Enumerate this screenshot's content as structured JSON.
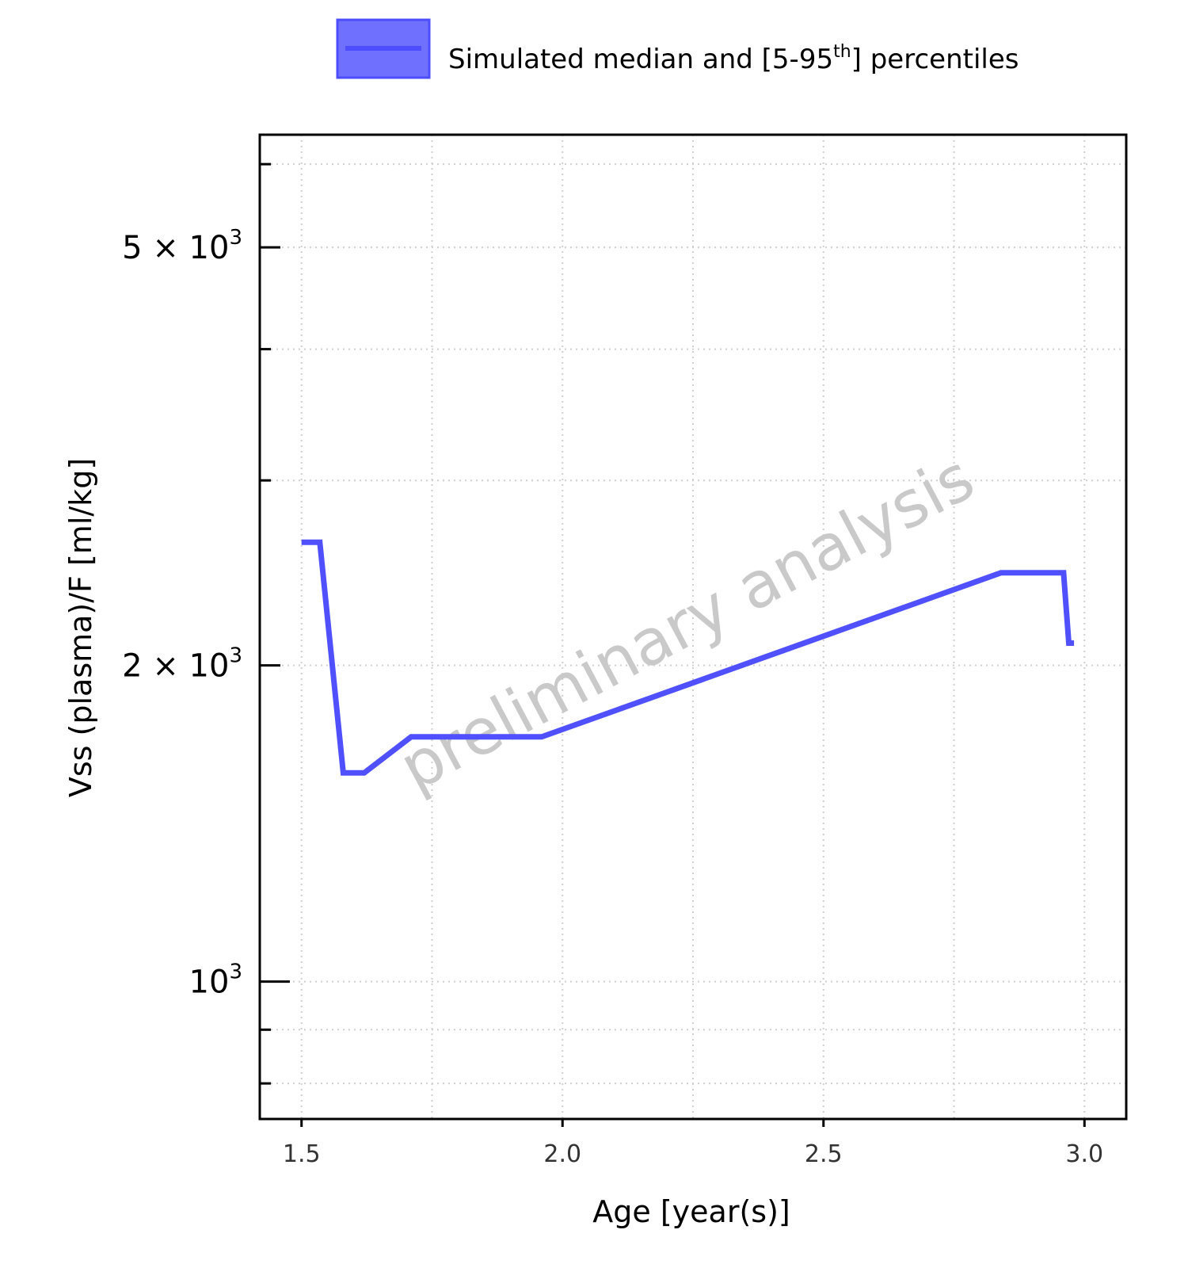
{
  "chart_data": {
    "type": "area",
    "y_scale": "log",
    "grid": true,
    "legend_placement": "top",
    "xlim": [
      1.42,
      3.08
    ],
    "ylim": [
      740,
      6400
    ],
    "xlabel": "Age [year(s)]",
    "ylabel": "Vss (plasma)/F [ml/kg]",
    "x_ticks": [
      {
        "value": 1.5,
        "label": "1.5"
      },
      {
        "value": 2.0,
        "label": "2.0"
      },
      {
        "value": 2.5,
        "label": "2.5"
      },
      {
        "value": 3.0,
        "label": "3.0"
      }
    ],
    "y_major_ticks": [
      {
        "value": 1000,
        "mantissa": "",
        "exponent": "3"
      },
      {
        "value": 2000,
        "mantissa": "2 × ",
        "exponent": "3"
      },
      {
        "value": 5000,
        "mantissa": "5 × ",
        "exponent": "3"
      }
    ],
    "y_minor_ticks": [
      800,
      900,
      3000,
      4000,
      6000
    ],
    "legend": {
      "text_main": "Simulated median and [5-95",
      "text_sup": "th",
      "text_end": "] percentiles",
      "line_color": "#4d4dff",
      "fill_color": "#7070ff"
    },
    "watermark": "preliminary analysis",
    "series": [
      {
        "name": "Simulated median and [5-95th] percentiles",
        "color": "#5050ff",
        "x": [
          1.5,
          1.535,
          1.58,
          1.62,
          1.71,
          1.96,
          2.84,
          2.96,
          2.97,
          2.98
        ],
        "y": [
          2620,
          2620,
          1580,
          1580,
          1710,
          1710,
          2450,
          2450,
          2100,
          2100
        ]
      }
    ]
  }
}
